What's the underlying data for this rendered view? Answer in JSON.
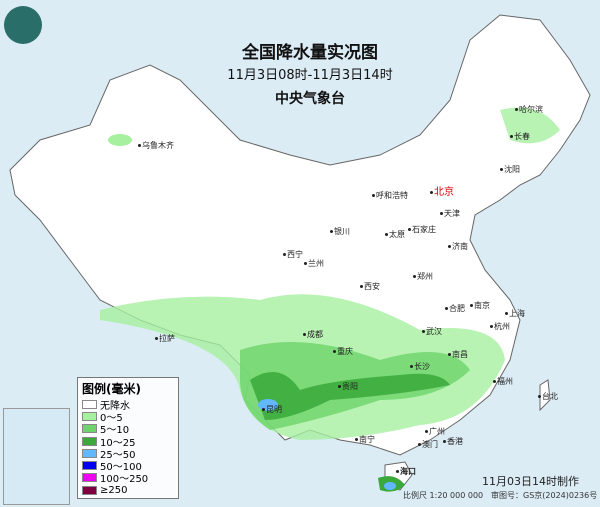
{
  "header": {
    "title": "全国降水量实况图",
    "period": "11月3日08时-11月3日14时",
    "agency": "中央气象台"
  },
  "legend": {
    "title": "图例(毫米)",
    "items": [
      {
        "label": "无降水",
        "color": "#ffffff"
      },
      {
        "label": "0～5",
        "color": "#a6f0a0"
      },
      {
        "label": "5～10",
        "color": "#6dd36a"
      },
      {
        "label": "10～25",
        "color": "#3aa83a"
      },
      {
        "label": "25～50",
        "color": "#62b8ff"
      },
      {
        "label": "50～100",
        "color": "#0000f0"
      },
      {
        "label": "100～250",
        "color": "#f000f0"
      },
      {
        "label": "≥250",
        "color": "#800040"
      }
    ]
  },
  "cities": [
    "乌鲁木齐",
    "哈尔滨",
    "长春",
    "沈阳",
    "北京",
    "天津",
    "呼和浩特",
    "石家庄",
    "太原",
    "济南",
    "银川",
    "西宁",
    "兰州",
    "西安",
    "郑州",
    "合肥",
    "南京",
    "上海",
    "杭州",
    "武汉",
    "成都",
    "重庆",
    "拉萨",
    "长沙",
    "南昌",
    "贵阳",
    "福州",
    "台北",
    "昆明",
    "南宁",
    "广州",
    "澳门",
    "香港",
    "海口"
  ],
  "footer": {
    "made": "11月03日14时制作",
    "scale": "比例尺 1:20 000 000",
    "review": "审图号：GS京(2024)0236号"
  },
  "colors": {
    "sea": "#dcecf5",
    "land": "#ffffff",
    "capital": "#d00000"
  }
}
